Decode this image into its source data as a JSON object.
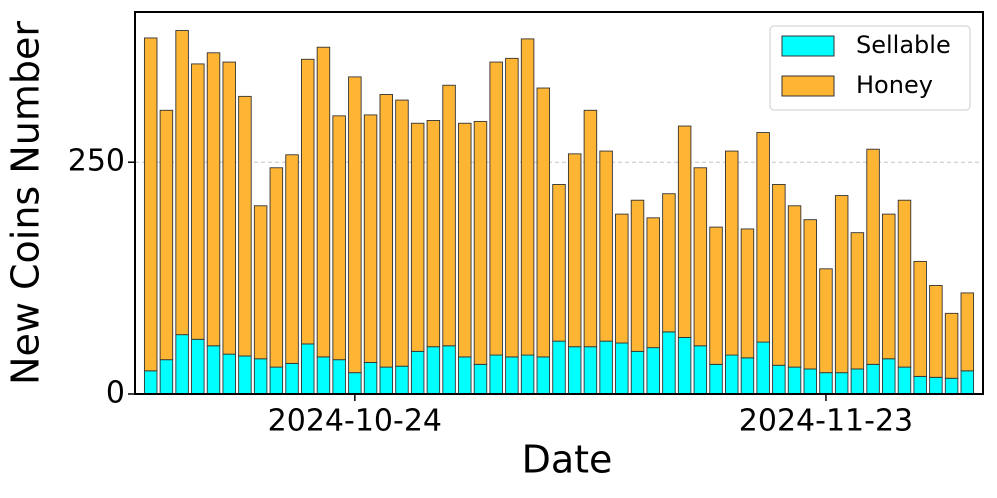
{
  "chart_data": {
    "type": "stacked_bar",
    "x_label": "Date",
    "y_label": "New Coins Number",
    "x": [
      "2024-10-11",
      "2024-10-12",
      "2024-10-13",
      "2024-10-14",
      "2024-10-15",
      "2024-10-16",
      "2024-10-17",
      "2024-10-18",
      "2024-10-19",
      "2024-10-20",
      "2024-10-21",
      "2024-10-22",
      "2024-10-23",
      "2024-10-24",
      "2024-10-25",
      "2024-10-26",
      "2024-10-27",
      "2024-10-28",
      "2024-10-29",
      "2024-10-30",
      "2024-10-31",
      "2024-11-01",
      "2024-11-02",
      "2024-11-03",
      "2024-11-04",
      "2024-11-05",
      "2024-11-06",
      "2024-11-07",
      "2024-11-08",
      "2024-11-09",
      "2024-11-10",
      "2024-11-11",
      "2024-11-12",
      "2024-11-13",
      "2024-11-14",
      "2024-11-15",
      "2024-11-16",
      "2024-11-17",
      "2024-11-18",
      "2024-11-19",
      "2024-11-20",
      "2024-11-21",
      "2024-11-22",
      "2024-11-23",
      "2024-11-24",
      "2024-11-25",
      "2024-11-26",
      "2024-11-27",
      "2024-11-28",
      "2024-11-29",
      "2024-11-30",
      "2024-12-01",
      "2024-12-02"
    ],
    "series": [
      {
        "name": "Sellable",
        "color": "#00ffff",
        "values": [
          25,
          37,
          64,
          59,
          52,
          43,
          41,
          38,
          29,
          33,
          54,
          40,
          37,
          23,
          34,
          29,
          30,
          46,
          51,
          52,
          40,
          32,
          42,
          40,
          42,
          40,
          57,
          51,
          51,
          57,
          55,
          46,
          50,
          67,
          61,
          52,
          32,
          42,
          39,
          56,
          31,
          29,
          27,
          23,
          23,
          27,
          32,
          38,
          29,
          19,
          18,
          17,
          25
        ]
      },
      {
        "name": "Honey",
        "color": "#ffb534",
        "values": [
          359,
          269,
          328,
          297,
          316,
          315,
          280,
          165,
          215,
          225,
          307,
          334,
          263,
          319,
          267,
          294,
          287,
          246,
          244,
          281,
          252,
          262,
          316,
          322,
          341,
          290,
          169,
          208,
          255,
          205,
          139,
          163,
          140,
          149,
          228,
          192,
          148,
          220,
          139,
          226,
          195,
          174,
          161,
          112,
          191,
          147,
          232,
          156,
          180,
          124,
          99,
          70,
          84
        ]
      }
    ],
    "xlim": [
      "2024-10-10",
      "2024-12-03"
    ],
    "xticks": [
      "2024-10-24",
      "2024-11-23"
    ],
    "ylim": [
      0,
      412
    ],
    "yticks": [
      0,
      250
    ],
    "grid": true,
    "legend": "upper right"
  }
}
